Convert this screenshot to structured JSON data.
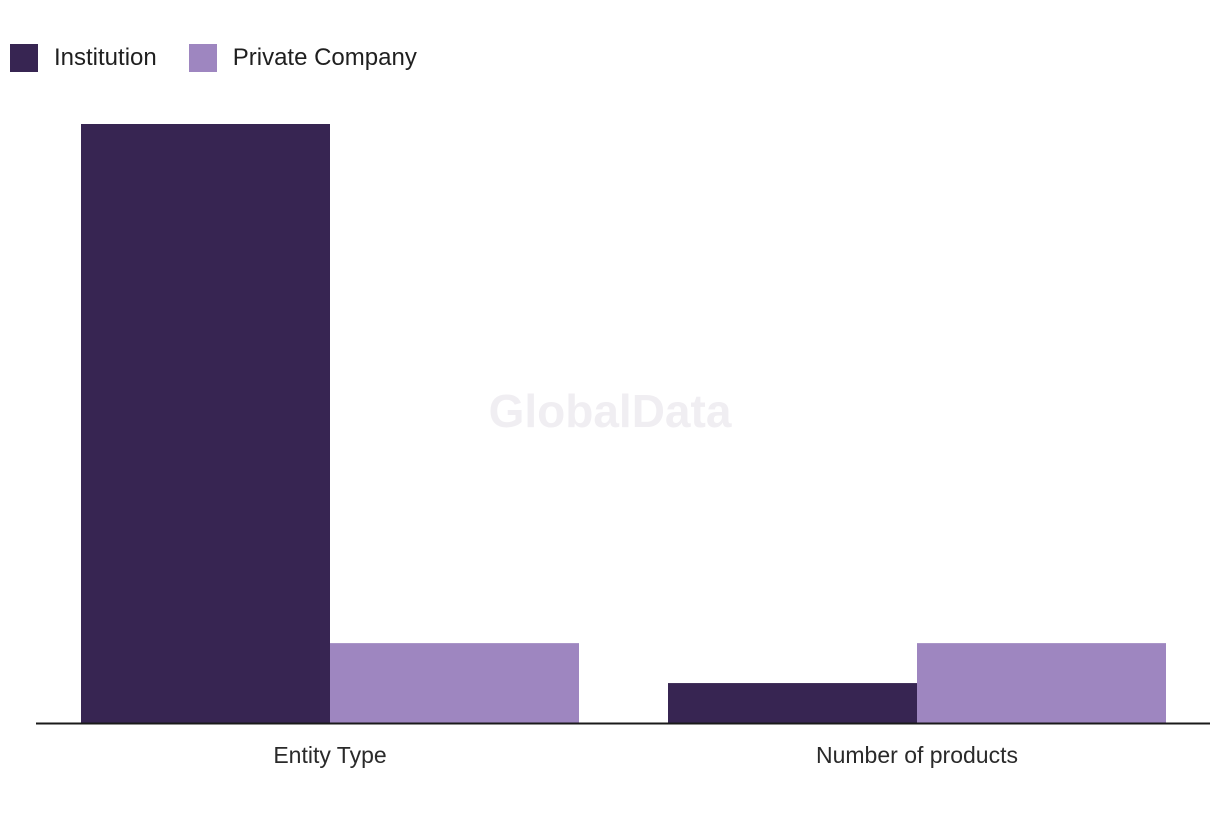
{
  "chart_data": {
    "type": "bar",
    "title": "",
    "xlabel": "",
    "ylabel": "",
    "categories": [
      "Entity Type",
      "Number of products"
    ],
    "series": [
      {
        "name": "Institution",
        "color": "#372552",
        "values": [
          15,
          1
        ]
      },
      {
        "name": "Private Company",
        "color": "#9e86c0",
        "values": [
          2,
          2
        ]
      }
    ],
    "ylim": [
      0,
      15
    ],
    "legend": "top-left",
    "grid": false
  },
  "watermark": "GlobalData"
}
